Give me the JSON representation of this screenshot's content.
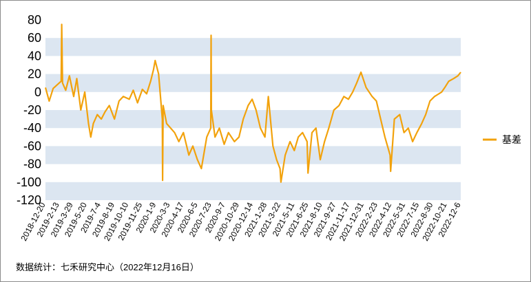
{
  "source_note": "数据统计：七禾研究中心（2022年12月16日）",
  "chart_data": {
    "type": "line",
    "title": "",
    "xlabel": "",
    "ylabel": "",
    "ylim": [
      -120,
      80
    ],
    "yticks": [
      80,
      60,
      40,
      20,
      0,
      -20,
      -40,
      -60,
      -80,
      -100,
      -120
    ],
    "grid": "alternating horizontal bands",
    "legend_position": "right",
    "colors": {
      "line": "#F2A20C",
      "band": "#DCE6F1"
    },
    "x_tick_labels": [
      "2018-12-20",
      "2019-2-13",
      "2019-3-29",
      "2019-5-20",
      "2019-7-4",
      "2019-8-19",
      "2019-10-10",
      "2019-11-25",
      "2020-1-9",
      "2020-3-3",
      "2020-4-17",
      "2020-6-5",
      "2020-7-23",
      "2020-9-7",
      "2020-10-29",
      "2020-12-14",
      "2021-1-28",
      "2021-3-22",
      "2021-5-11",
      "2021-6-25",
      "2021-8-10",
      "2021-9-27",
      "2021-11-17",
      "2021-12-31",
      "2022-2-23",
      "2022-4-12",
      "2022-5-31",
      "2022-7-15",
      "2022-8-30",
      "2022-10-21",
      "2022-12-6"
    ],
    "series": [
      {
        "name": "基差",
        "x": [
          "2018-12-20",
          "2019-1-2",
          "2019-1-16",
          "2019-1-30",
          "2019-2-13",
          "2019-2-15",
          "2019-2-18",
          "2019-3-1",
          "2019-3-14",
          "2019-3-29",
          "2019-4-9",
          "2019-4-23",
          "2019-5-7",
          "2019-5-20",
          "2019-5-28",
          "2019-6-6",
          "2019-6-20",
          "2019-7-4",
          "2019-7-17",
          "2019-8-1",
          "2019-8-19",
          "2019-9-4",
          "2019-9-19",
          "2019-10-10",
          "2019-10-24",
          "2019-11-8",
          "2019-11-25",
          "2019-12-10",
          "2019-12-24",
          "2020-1-3",
          "2020-1-9",
          "2020-1-21",
          "2020-2-3",
          "2020-2-4",
          "2020-2-6",
          "2020-2-18",
          "2020-3-3",
          "2020-3-17",
          "2020-4-1",
          "2020-4-17",
          "2020-5-6",
          "2020-5-20",
          "2020-6-5",
          "2020-6-19",
          "2020-7-8",
          "2020-7-22",
          "2020-7-23",
          "2020-7-24",
          "2020-8-6",
          "2020-8-21",
          "2020-9-7",
          "2020-9-22",
          "2020-10-13",
          "2020-10-29",
          "2020-11-13",
          "2020-11-30",
          "2020-12-14",
          "2020-12-28",
          "2021-1-12",
          "2021-1-28",
          "2021-2-9",
          "2021-2-25",
          "2021-3-10",
          "2021-3-22",
          "2021-3-25",
          "2021-4-9",
          "2021-4-26",
          "2021-5-11",
          "2021-5-25",
          "2021-6-9",
          "2021-6-25",
          "2021-6-28",
          "2021-7-12",
          "2021-7-26",
          "2021-8-10",
          "2021-8-25",
          "2021-9-9",
          "2021-9-27",
          "2021-10-15",
          "2021-11-1",
          "2021-11-17",
          "2021-12-2",
          "2021-12-16",
          "2021-12-31",
          "2022-1-18",
          "2022-2-8",
          "2022-2-23",
          "2022-3-10",
          "2022-3-25",
          "2022-4-12",
          "2022-4-14",
          "2022-4-27",
          "2022-5-16",
          "2022-5-31",
          "2022-6-15",
          "2022-6-30",
          "2022-7-15",
          "2022-8-1",
          "2022-8-15",
          "2022-8-30",
          "2022-9-15",
          "2022-10-10",
          "2022-10-21",
          "2022-11-4",
          "2022-11-21",
          "2022-12-6",
          "2022-12-16"
        ],
        "values": [
          5,
          -10,
          4,
          8,
          12,
          75,
          10,
          2,
          18,
          -5,
          15,
          -20,
          0,
          -35,
          -50,
          -35,
          -25,
          -30,
          -22,
          -15,
          -30,
          -10,
          -5,
          -8,
          2,
          -12,
          3,
          -2,
          12,
          25,
          35,
          20,
          -30,
          -98,
          -15,
          -35,
          -40,
          -45,
          -55,
          -45,
          -70,
          -60,
          -75,
          -85,
          -50,
          -40,
          63,
          -20,
          -50,
          -40,
          -58,
          -45,
          -55,
          -50,
          -30,
          -15,
          -8,
          -20,
          -40,
          -50,
          -5,
          -60,
          -75,
          -85,
          -100,
          -70,
          -55,
          -65,
          -50,
          -45,
          -55,
          -90,
          -45,
          -40,
          -75,
          -55,
          -40,
          -20,
          -15,
          -5,
          -8,
          0,
          10,
          22,
          5,
          -5,
          -10,
          -30,
          -50,
          -70,
          -88,
          -30,
          -25,
          -45,
          -40,
          -55,
          -45,
          -35,
          -25,
          -10,
          -5,
          0,
          5,
          12,
          15,
          18,
          22
        ]
      }
    ]
  }
}
